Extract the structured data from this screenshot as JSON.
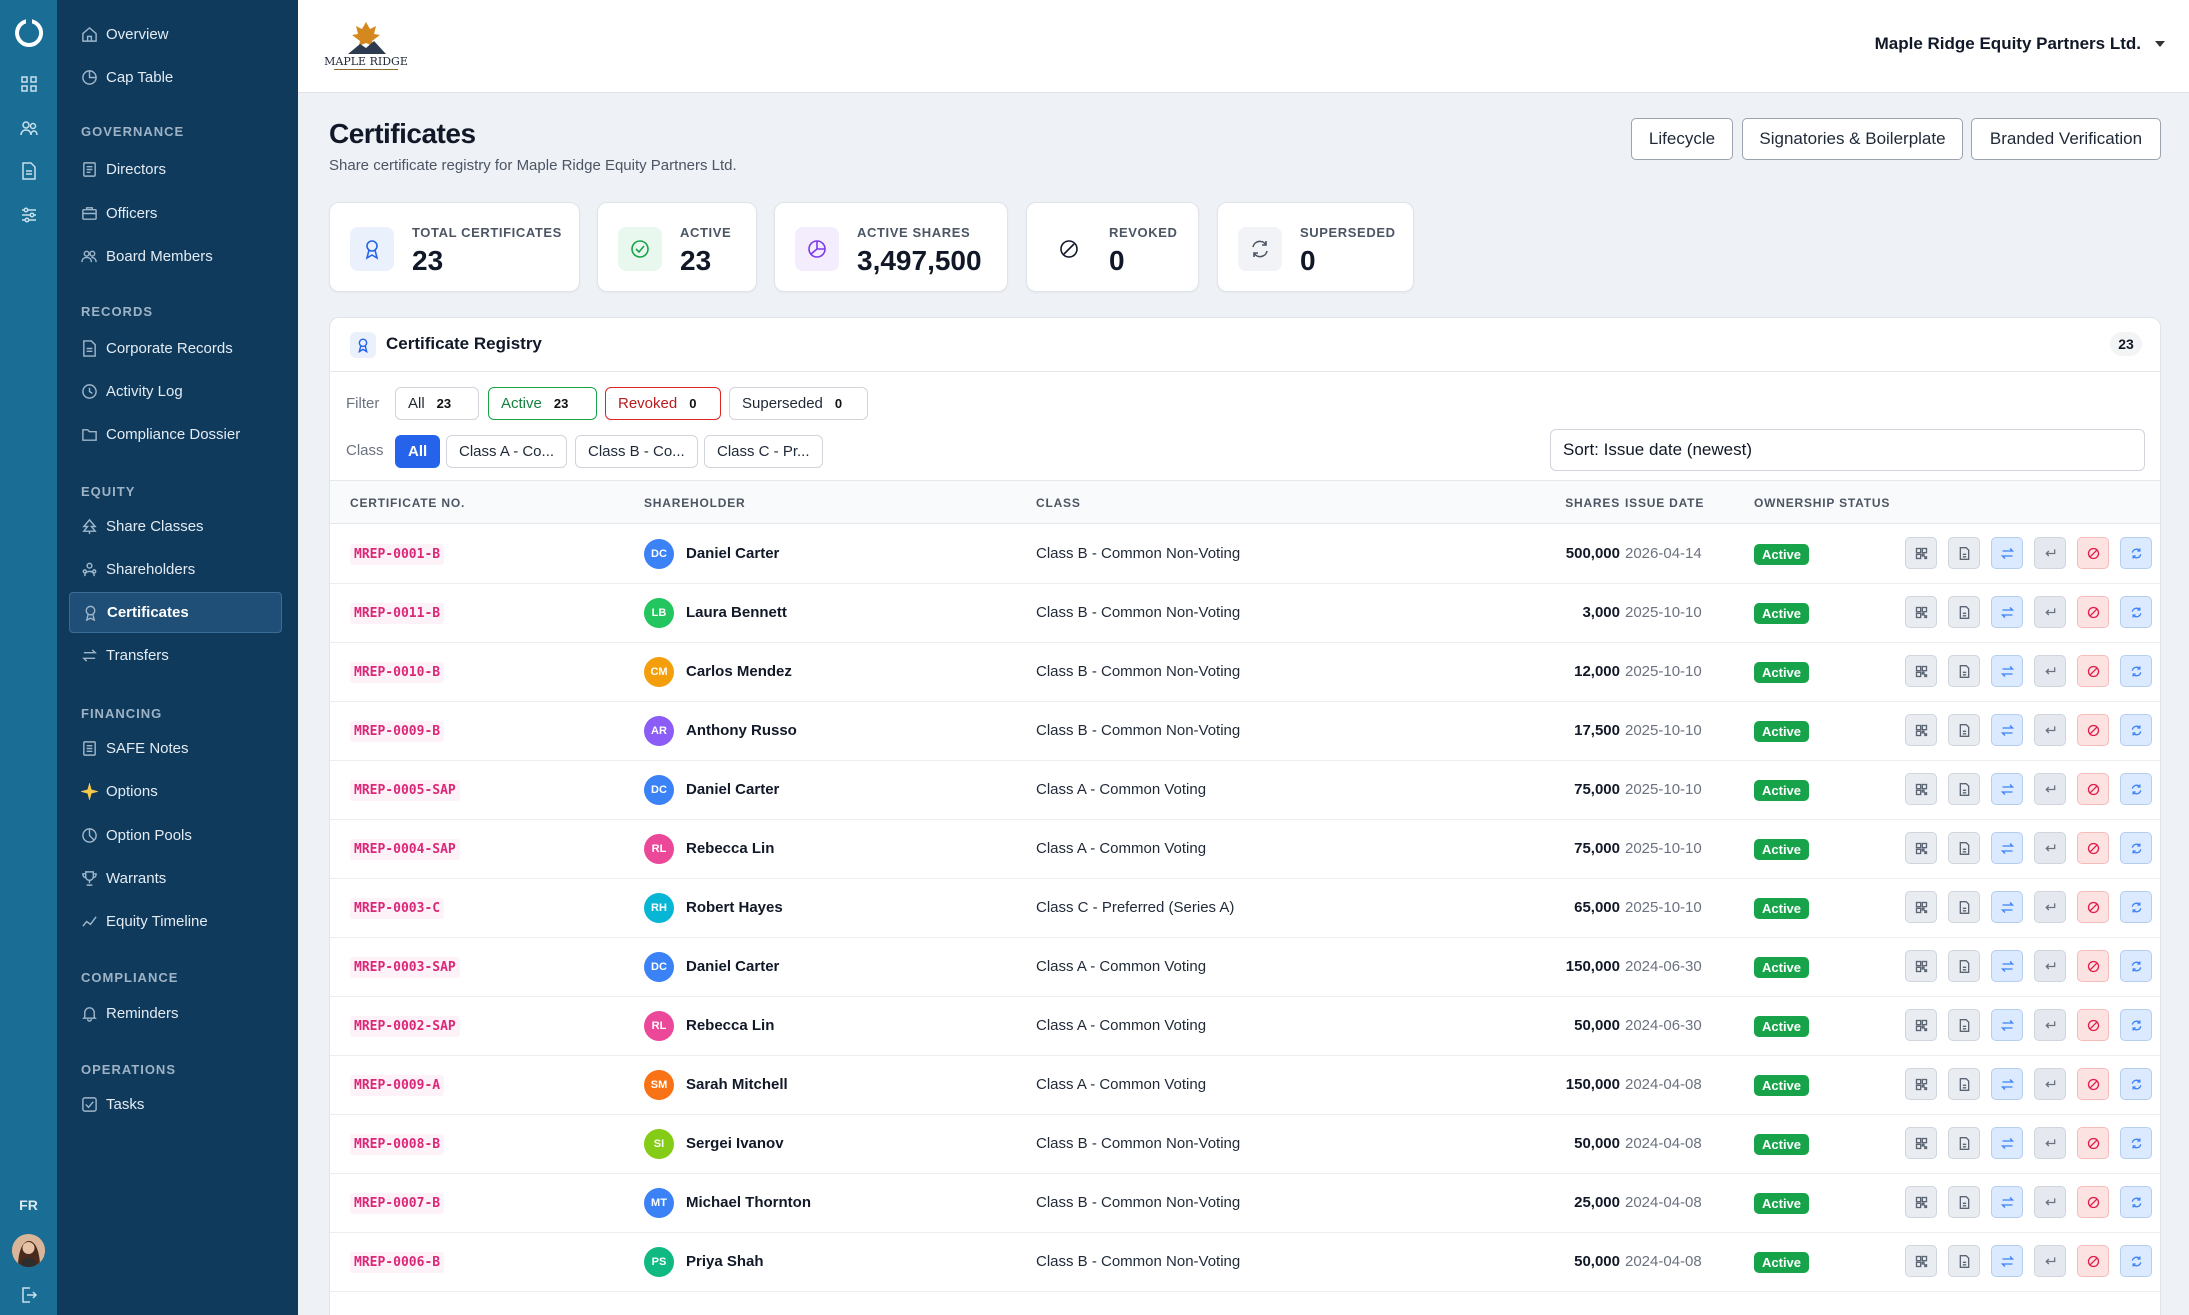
{
  "rail": {
    "lang": "FR"
  },
  "sidebar": {
    "sections": [
      {
        "heading": "",
        "items": [
          {
            "label": "Overview",
            "icon": "home-icon"
          },
          {
            "label": "Cap Table",
            "icon": "pie-icon"
          }
        ]
      },
      {
        "heading": "GOVERNANCE",
        "items": [
          {
            "label": "Directors",
            "icon": "id-card-icon"
          },
          {
            "label": "Officers",
            "icon": "briefcase-icon"
          },
          {
            "label": "Board Members",
            "icon": "users-icon"
          }
        ]
      },
      {
        "heading": "RECORDS",
        "items": [
          {
            "label": "Corporate Records",
            "icon": "document-icon"
          },
          {
            "label": "Activity Log",
            "icon": "clock-icon"
          },
          {
            "label": "Compliance Dossier",
            "icon": "folder-icon"
          }
        ]
      },
      {
        "heading": "EQUITY",
        "items": [
          {
            "label": "Share Classes",
            "icon": "tree-icon"
          },
          {
            "label": "Shareholders",
            "icon": "user-group-icon"
          },
          {
            "label": "Certificates",
            "icon": "award-icon",
            "active": true
          },
          {
            "label": "Transfers",
            "icon": "transfer-icon"
          }
        ]
      },
      {
        "heading": "FINANCING",
        "items": [
          {
            "label": "SAFE Notes",
            "icon": "note-icon"
          },
          {
            "label": "Options",
            "icon": "sparkle-icon"
          },
          {
            "label": "Option Pools",
            "icon": "pool-icon"
          },
          {
            "label": "Warrants",
            "icon": "trophy-icon"
          },
          {
            "label": "Equity Timeline",
            "icon": "timeline-icon"
          }
        ]
      },
      {
        "heading": "COMPLIANCE",
        "items": [
          {
            "label": "Reminders",
            "icon": "bell-icon"
          }
        ]
      },
      {
        "heading": "OPERATIONS",
        "items": [
          {
            "label": "Tasks",
            "icon": "checkbox-icon"
          }
        ]
      }
    ]
  },
  "topbar": {
    "company": "Maple Ridge Equity Partners Ltd.",
    "logo_text": "MAPLE RIDGE"
  },
  "page": {
    "title": "Certificates",
    "subtitle": "Share certificate registry for Maple Ridge Equity Partners Ltd."
  },
  "header_buttons": [
    "Lifecycle",
    "Signatories & Boilerplate",
    "Branded Verification"
  ],
  "stats": [
    {
      "label": "TOTAL CERTIFICATES",
      "value": "23",
      "icon": "award-icon",
      "color": "#2563eb"
    },
    {
      "label": "ACTIVE",
      "value": "23",
      "icon": "check-circle-icon",
      "color": "#16a34a"
    },
    {
      "label": "ACTIVE SHARES",
      "value": "3,497,500",
      "icon": "pie-chart-icon",
      "color": "#7c3aed"
    },
    {
      "label": "REVOKED",
      "value": "0",
      "icon": "ban-icon",
      "color": "#111827"
    },
    {
      "label": "SUPERSEDED",
      "value": "0",
      "icon": "refresh-icon",
      "color": "#4b5563"
    }
  ],
  "registry": {
    "title": "Certificate Registry",
    "count": "23",
    "filter_label": "Filter",
    "filters": [
      {
        "label": "All",
        "count": "23"
      },
      {
        "label": "Active",
        "count": "23"
      },
      {
        "label": "Revoked",
        "count": "0"
      },
      {
        "label": "Superseded",
        "count": "0"
      }
    ],
    "class_label": "Class",
    "classes": [
      "All",
      "Class A - Co...",
      "Class B - Co...",
      "Class C - Pr..."
    ],
    "sort": "Sort: Issue date (newest)",
    "columns": [
      "CERTIFICATE NO.",
      "SHAREHOLDER",
      "CLASS",
      "SHARES",
      "ISSUE DATE",
      "OWNERSHIP STATUS"
    ],
    "rows": [
      {
        "cert": "MREP-0001-B",
        "initials": "DC",
        "name": "Daniel Carter",
        "color": "#3b82f6",
        "class": "Class B - Common Non-Voting",
        "shares": "500,000",
        "date": "2026-04-14",
        "status": "Active"
      },
      {
        "cert": "MREP-0011-B",
        "initials": "LB",
        "name": "Laura Bennett",
        "color": "#22c55e",
        "class": "Class B - Common Non-Voting",
        "shares": "3,000",
        "date": "2025-10-10",
        "status": "Active"
      },
      {
        "cert": "MREP-0010-B",
        "initials": "CM",
        "name": "Carlos Mendez",
        "color": "#f59e0b",
        "class": "Class B - Common Non-Voting",
        "shares": "12,000",
        "date": "2025-10-10",
        "status": "Active"
      },
      {
        "cert": "MREP-0009-B",
        "initials": "AR",
        "name": "Anthony Russo",
        "color": "#8b5cf6",
        "class": "Class B - Common Non-Voting",
        "shares": "17,500",
        "date": "2025-10-10",
        "status": "Active"
      },
      {
        "cert": "MREP-0005-SAP",
        "initials": "DC",
        "name": "Daniel Carter",
        "color": "#3b82f6",
        "class": "Class A - Common Voting",
        "shares": "75,000",
        "date": "2025-10-10",
        "status": "Active"
      },
      {
        "cert": "MREP-0004-SAP",
        "initials": "RL",
        "name": "Rebecca Lin",
        "color": "#ec4899",
        "class": "Class A - Common Voting",
        "shares": "75,000",
        "date": "2025-10-10",
        "status": "Active"
      },
      {
        "cert": "MREP-0003-C",
        "initials": "RH",
        "name": "Robert Hayes",
        "color": "#06b6d4",
        "class": "Class C - Preferred (Series A)",
        "shares": "65,000",
        "date": "2025-10-10",
        "status": "Active"
      },
      {
        "cert": "MREP-0003-SAP",
        "initials": "DC",
        "name": "Daniel Carter",
        "color": "#3b82f6",
        "class": "Class A - Common Voting",
        "shares": "150,000",
        "date": "2024-06-30",
        "status": "Active"
      },
      {
        "cert": "MREP-0002-SAP",
        "initials": "RL",
        "name": "Rebecca Lin",
        "color": "#ec4899",
        "class": "Class A - Common Voting",
        "shares": "50,000",
        "date": "2024-06-30",
        "status": "Active"
      },
      {
        "cert": "MREP-0009-A",
        "initials": "SM",
        "name": "Sarah Mitchell",
        "color": "#f97316",
        "class": "Class A - Common Voting",
        "shares": "150,000",
        "date": "2024-04-08",
        "status": "Active"
      },
      {
        "cert": "MREP-0008-B",
        "initials": "SI",
        "name": "Sergei Ivanov",
        "color": "#84cc16",
        "class": "Class B - Common Non-Voting",
        "shares": "50,000",
        "date": "2024-04-08",
        "status": "Active"
      },
      {
        "cert": "MREP-0007-B",
        "initials": "MT",
        "name": "Michael Thornton",
        "color": "#3b82f6",
        "class": "Class B - Common Non-Voting",
        "shares": "25,000",
        "date": "2024-04-08",
        "status": "Active"
      },
      {
        "cert": "MREP-0006-B",
        "initials": "PS",
        "name": "Priya Shah",
        "color": "#10b981",
        "class": "Class B - Common Non-Voting",
        "shares": "50,000",
        "date": "2024-04-08",
        "status": "Active"
      }
    ]
  }
}
